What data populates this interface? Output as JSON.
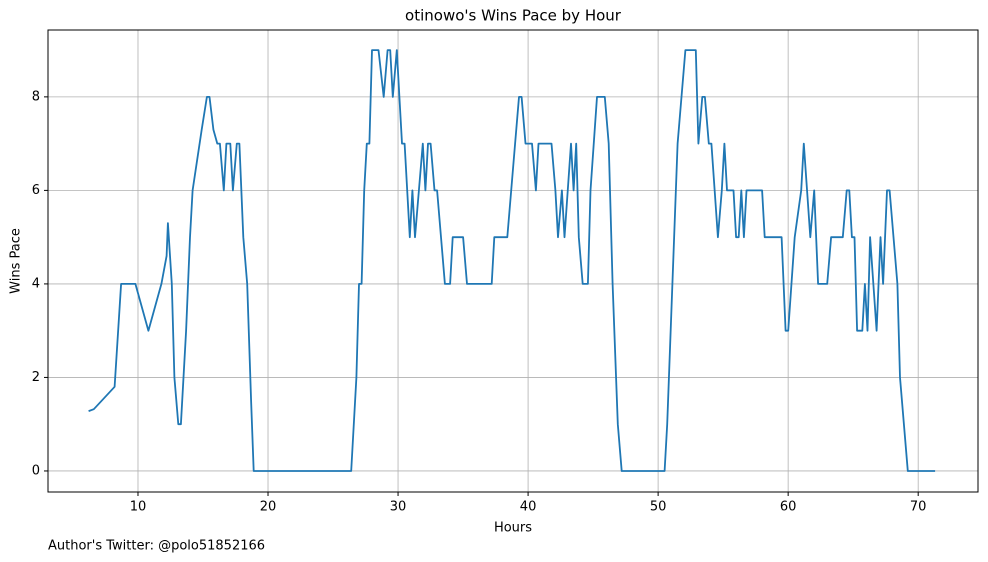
{
  "chart_data": {
    "type": "line",
    "title": "otinowo's Wins Pace by Hour",
    "xlabel": "Hours",
    "ylabel": "Wins Pace",
    "footnote": "Author's Twitter: @polo51852166",
    "x": [
      6.2,
      6.6,
      7.2,
      8.2,
      8.7,
      9.8,
      10.8,
      11.8,
      12.2,
      12.3,
      12.6,
      12.8,
      13.1,
      13.3,
      13.7,
      14.0,
      14.2,
      14.9,
      15.3,
      15.5,
      15.8,
      16.1,
      16.3,
      16.6,
      16.8,
      17.1,
      17.3,
      17.6,
      17.8,
      18.1,
      18.4,
      18.7,
      18.9,
      26.4,
      26.8,
      27.0,
      27.2,
      27.4,
      27.6,
      27.8,
      28.0,
      28.5,
      28.9,
      29.2,
      29.4,
      29.6,
      29.9,
      30.1,
      30.3,
      30.5,
      30.9,
      31.1,
      31.3,
      31.9,
      32.1,
      32.3,
      32.5,
      32.8,
      33.0,
      33.6,
      34.0,
      34.2,
      35.0,
      35.3,
      37.2,
      37.4,
      38.4,
      39.0,
      39.3,
      39.5,
      39.8,
      40.3,
      40.6,
      40.8,
      41.8,
      42.1,
      42.3,
      42.6,
      42.8,
      43.3,
      43.5,
      43.7,
      43.9,
      44.2,
      44.6,
      44.8,
      45.3,
      45.9,
      46.2,
      46.5,
      46.9,
      47.2,
      50.5,
      50.7,
      51.1,
      51.5,
      52.1,
      52.9,
      53.1,
      53.4,
      53.6,
      53.9,
      54.1,
      54.6,
      54.9,
      55.1,
      55.3,
      55.8,
      56.0,
      56.2,
      56.4,
      56.6,
      56.8,
      58.0,
      58.2,
      59.5,
      59.8,
      60.0,
      60.5,
      61.0,
      61.2,
      61.7,
      62.0,
      62.3,
      63.0,
      63.3,
      64.2,
      64.5,
      64.7,
      64.9,
      65.1,
      65.3,
      65.7,
      65.9,
      66.1,
      66.3,
      66.8,
      67.1,
      67.3,
      67.6,
      67.8,
      68.4,
      68.6,
      69.2,
      71.3
    ],
    "series": [
      {
        "name": "otinowo",
        "color": "#1f77b4",
        "values": [
          1.28,
          1.32,
          1.5,
          1.8,
          4,
          4,
          3,
          4,
          4.6,
          5.3,
          4,
          2,
          1,
          1,
          3,
          5,
          6,
          7.3,
          8,
          8,
          7.3,
          7,
          7,
          6,
          7,
          7,
          6,
          7,
          7,
          5,
          4,
          1.5,
          0,
          0,
          2,
          4,
          4,
          6,
          7,
          7,
          9,
          9,
          8,
          9,
          9,
          8,
          9,
          8,
          7,
          7,
          5,
          6,
          5,
          7,
          6,
          7,
          7,
          6,
          6,
          4,
          4,
          5,
          5,
          4,
          4,
          5,
          5,
          7,
          8,
          8,
          7,
          7,
          6,
          7,
          7,
          6,
          5,
          6,
          5,
          7,
          6,
          7,
          5,
          4,
          4,
          6,
          8,
          8,
          7,
          4,
          1,
          0,
          0,
          1,
          4,
          7,
          9,
          9,
          7,
          8,
          8,
          7,
          7,
          5,
          6,
          7,
          6,
          6,
          5,
          5,
          6,
          5,
          6,
          6,
          5,
          5,
          3,
          3,
          5,
          6,
          7,
          5,
          6,
          4,
          4,
          5,
          5,
          6,
          6,
          5,
          5,
          3,
          3,
          4,
          3,
          5,
          3,
          5,
          4,
          6,
          6,
          4,
          2,
          0,
          0
        ]
      }
    ],
    "xlim": [
      3.08,
      74.6
    ],
    "ylim": [
      -0.45,
      9.43
    ],
    "xticks": [
      10,
      20,
      30,
      40,
      50,
      60,
      70
    ],
    "yticks": [
      0,
      2,
      4,
      6,
      8
    ],
    "grid": true
  }
}
